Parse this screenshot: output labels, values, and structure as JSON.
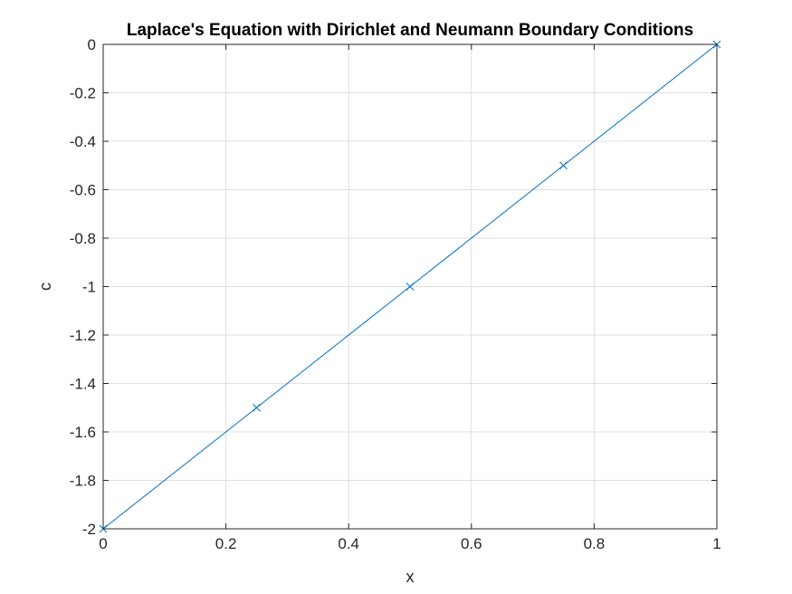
{
  "chart_data": {
    "type": "line",
    "title": "Laplace's Equation with Dirichlet and Neumann Boundary Conditions",
    "xlabel": "x",
    "ylabel": "c",
    "xlim": [
      0,
      1
    ],
    "ylim": [
      -2,
      0
    ],
    "grid": true,
    "xticks": [
      0,
      0.2,
      0.4,
      0.6,
      0.8,
      1
    ],
    "xtick_labels": [
      "0",
      "0.2",
      "0.4",
      "0.6",
      "0.8",
      "1"
    ],
    "yticks": [
      0,
      -0.2,
      -0.4,
      -0.6,
      -0.8,
      -1,
      -1.2,
      -1.4,
      -1.6,
      -1.8,
      -2
    ],
    "ytick_labels": [
      "0",
      "-0.2",
      "-0.4",
      "-0.6",
      "-0.8",
      "-1",
      "-1.2",
      "-1.4",
      "-1.6",
      "-1.8",
      "-2"
    ],
    "series": [
      {
        "x": [
          0,
          0.25,
          0.5,
          0.75,
          1
        ],
        "y": [
          -2,
          -1.5,
          -1,
          -0.5,
          0
        ],
        "color": "#0072bd",
        "marker": "x"
      }
    ]
  }
}
